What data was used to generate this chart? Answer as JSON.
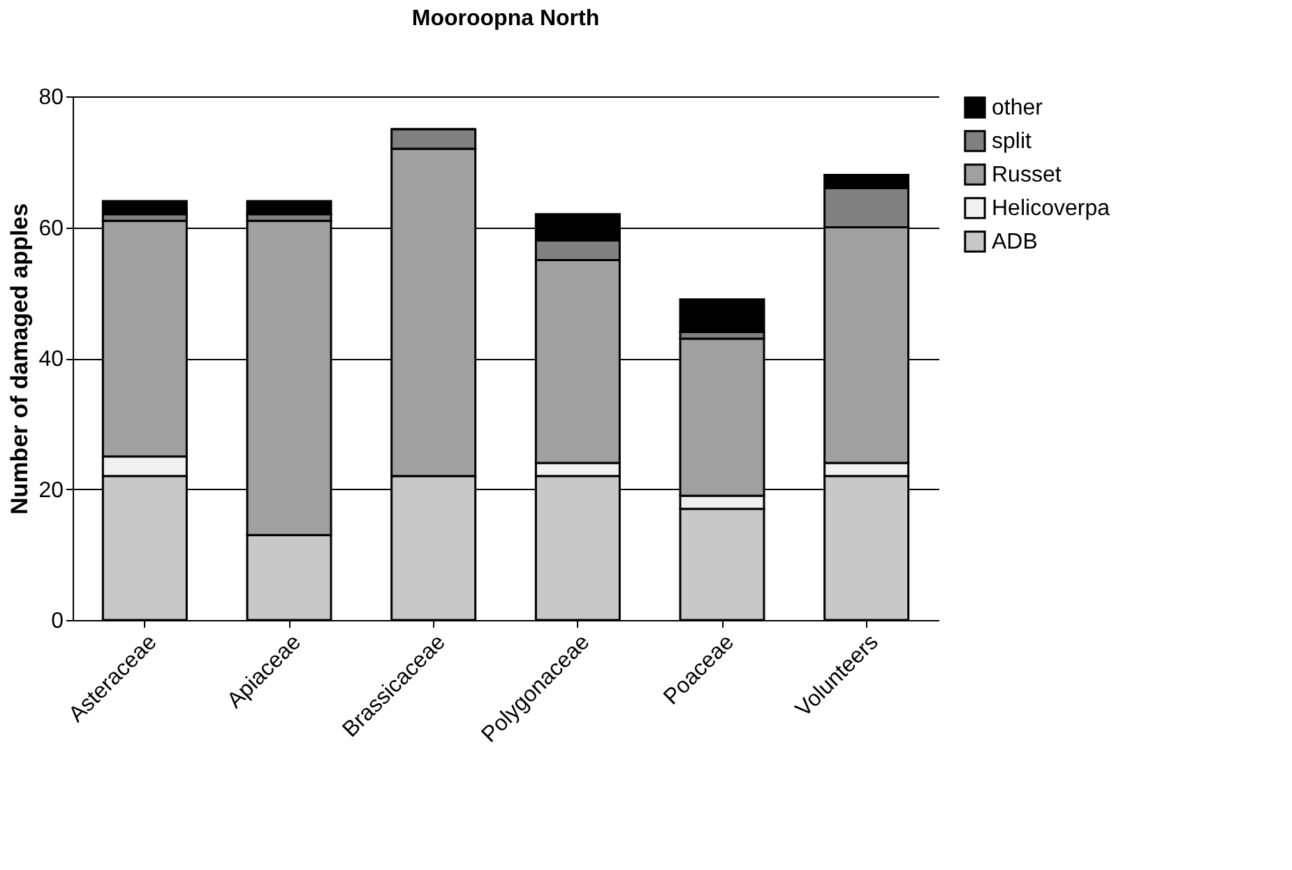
{
  "chart_data": {
    "type": "bar",
    "title": "Mooroopna North",
    "ylabel": "Number of damaged apples",
    "categories": [
      "Asteraceae",
      "Apiaceae",
      "Brassicaceae",
      "Polygonaceae",
      "Poaceae",
      "Volunteers"
    ],
    "stacked": true,
    "series": [
      {
        "name": "ADB",
        "color": "#c8c8c8",
        "values": [
          22,
          13,
          22,
          22,
          17,
          22
        ]
      },
      {
        "name": "Helicoverpa",
        "color": "#f0f0f0",
        "values": [
          3,
          0,
          0,
          2,
          2,
          2
        ]
      },
      {
        "name": "Russet",
        "color": "#a0a0a0",
        "values": [
          36,
          48,
          50,
          31,
          24,
          36
        ]
      },
      {
        "name": "split",
        "color": "#808080",
        "values": [
          1,
          1,
          3,
          3,
          1,
          6
        ]
      },
      {
        "name": "other",
        "color": "#000000",
        "values": [
          2,
          2,
          0,
          4,
          5,
          2
        ]
      }
    ],
    "ylim": [
      0,
      80
    ],
    "yticks": [
      0,
      20,
      40,
      60,
      80
    ],
    "grid": "y",
    "legend": "right"
  }
}
